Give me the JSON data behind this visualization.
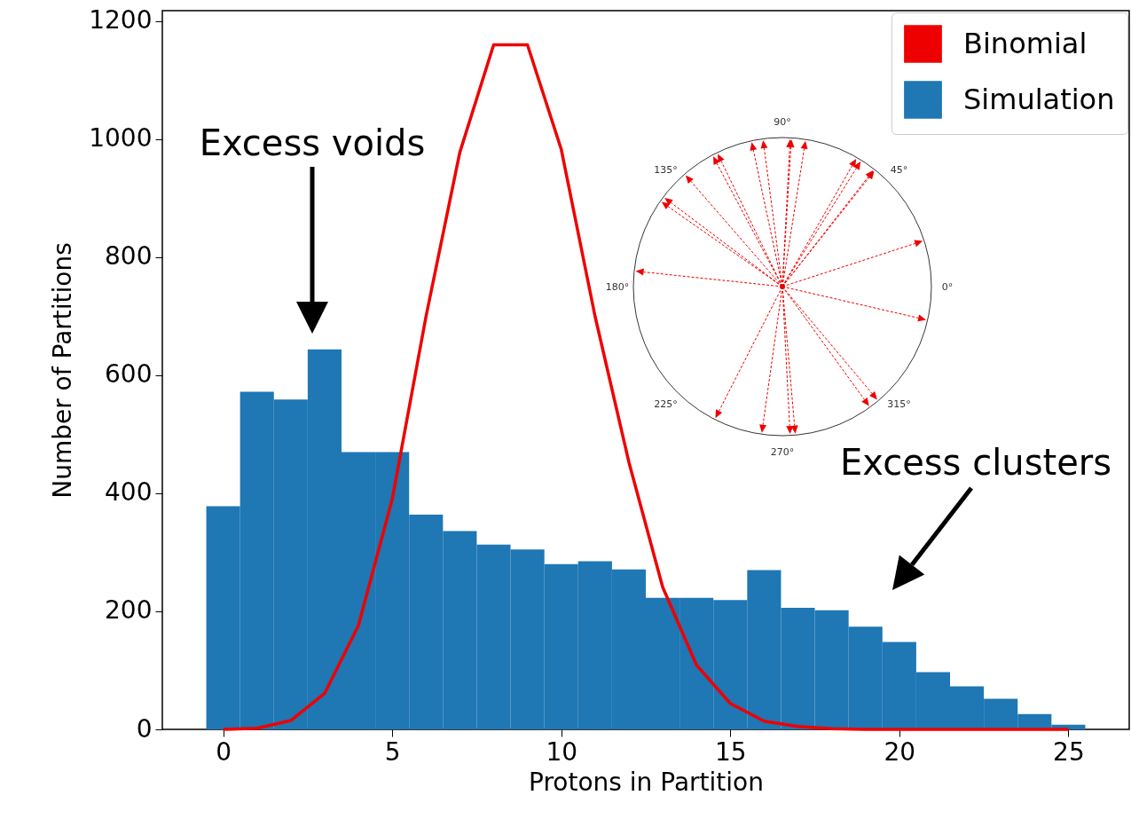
{
  "chart_data": {
    "type": "histogram",
    "xlabel": "Protons in Partition",
    "ylabel": "Number of Partitions",
    "bins": [
      -0.5,
      0.5,
      1.5,
      2.5,
      3.5,
      4.5,
      5.5,
      6.5,
      7.5,
      8.5,
      9.5,
      10.5,
      11.5,
      12.5,
      13.5,
      14.5,
      15.5,
      16.5,
      17.5,
      18.5,
      19.5,
      20.5,
      21.5,
      22.5,
      23.5,
      24.5,
      25.5
    ],
    "series": [
      {
        "name": "Binomial",
        "type": "line",
        "color": "#ee0000",
        "x": [
          0,
          1,
          2,
          3,
          4,
          5,
          6,
          7,
          8,
          9,
          10,
          11,
          12,
          13,
          14,
          15,
          16,
          17,
          18,
          19,
          20,
          21,
          22,
          23,
          24,
          25
        ],
        "values": [
          0,
          2,
          15,
          61,
          176,
          390,
          700,
          978,
          1160,
          1160,
          983,
          700,
          453,
          241,
          109,
          44,
          14,
          5,
          1,
          0,
          0,
          0,
          0,
          0,
          0,
          0
        ]
      },
      {
        "name": "Simulation",
        "color": "#1f77b4",
        "values": [
          378,
          572,
          559,
          644,
          470,
          470,
          364,
          336,
          313,
          305,
          280,
          285,
          271,
          223,
          223,
          219,
          270,
          206,
          202,
          174,
          148,
          97,
          73,
          52,
          26,
          8
        ]
      }
    ],
    "xlim": [
      -1.8,
      26.8
    ],
    "xticks": [
      0,
      5,
      10,
      15,
      20,
      25
    ],
    "ylim": [
      0,
      1218
    ],
    "yticks": [
      0,
      200,
      400,
      600,
      800,
      1000,
      1200
    ],
    "grid": false,
    "legend": "top right",
    "annotations": [
      "Excess voids",
      "Excess clusters",
      "0°",
      "45°",
      "90°",
      "135°",
      "180°",
      "225°",
      "270°",
      "315°"
    ]
  }
}
